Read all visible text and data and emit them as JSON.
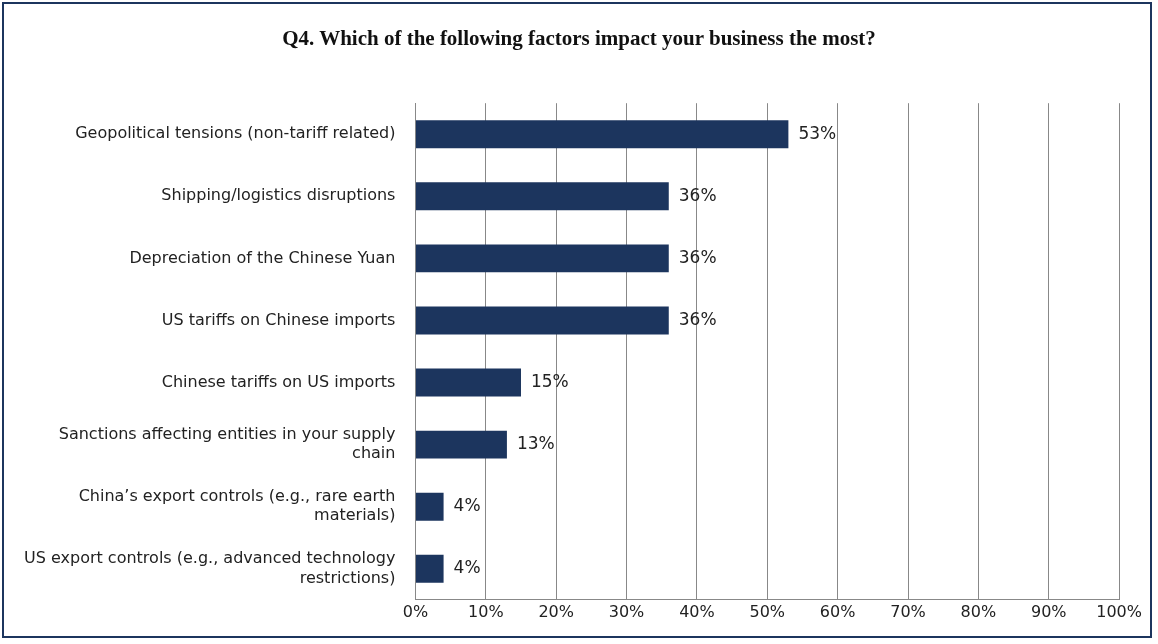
{
  "chart_data": {
    "type": "bar",
    "orientation": "horizontal",
    "title": "Q4. Which of the following factors impact your business the most?",
    "categories": [
      "Geopolitical tensions (non-tariff related)",
      "Shipping/logistics disruptions",
      "Depreciation of the Chinese Yuan",
      "US tariffs on Chinese imports",
      "Chinese tariffs on US imports",
      "Sanctions affecting entities in your supply chain",
      "China’s export controls (e.g., rare earth materials)",
      "US export controls (e.g., advanced technology restrictions)"
    ],
    "values": [
      53,
      36,
      36,
      36,
      15,
      13,
      4,
      4
    ],
    "value_labels": [
      "53%",
      "36%",
      "36%",
      "36%",
      "15%",
      "13%",
      "4%",
      "4%"
    ],
    "color": "#1c355e",
    "xlim": [
      0,
      100
    ],
    "xticks": [
      {
        "value": 0,
        "label": "0%"
      },
      {
        "value": 10,
        "label": "10%"
      },
      {
        "value": 20,
        "label": "20%"
      },
      {
        "value": 30,
        "label": "30%"
      },
      {
        "value": 40,
        "label": "40%"
      },
      {
        "value": 50,
        "label": "50%"
      },
      {
        "value": 60,
        "label": "60%"
      },
      {
        "value": 70,
        "label": "70%"
      },
      {
        "value": 80,
        "label": "80%"
      },
      {
        "value": 90,
        "label": "90%"
      },
      {
        "value": 100,
        "label": "100%"
      }
    ],
    "grid": "x",
    "legend": false
  }
}
